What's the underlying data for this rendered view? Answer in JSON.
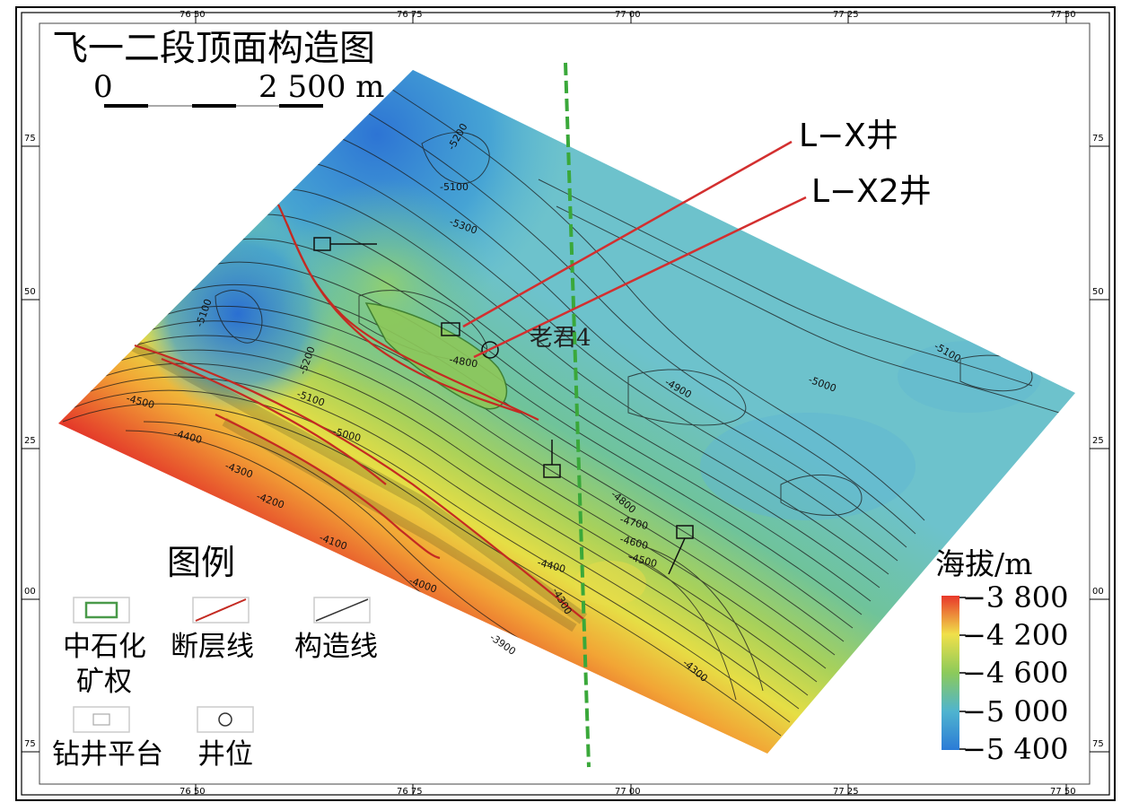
{
  "map": {
    "title": "飞一二段顶面构造图",
    "scale_start": "0",
    "scale_end": "2 500 m",
    "wells": [
      "L−X井",
      "L−X2井"
    ],
    "platform_label": "老君4"
  },
  "contour_labels": [
    "-5200",
    "-5100",
    "-5300",
    "-5200",
    "-5100",
    "-5000",
    "-5100",
    "-4500",
    "-4400",
    "-4300",
    "-4200",
    "-4100",
    "-4000",
    "-3900",
    "-4800",
    "-4900",
    "-5000",
    "-4800",
    "-4700",
    "-4600",
    "-4500",
    "-4400",
    "-4300",
    "-5100",
    "-4300"
  ],
  "frame_ticks": {
    "top": [
      "76 50",
      "76 75",
      "77 00",
      "77 25",
      "77 50"
    ],
    "bottom": [
      "76 50",
      "76 75",
      "77 00",
      "77 25",
      "77 50"
    ],
    "left": [
      "75",
      "50",
      "25",
      "00",
      "75"
    ],
    "right": [
      "75",
      "50",
      "25",
      "00",
      "75"
    ]
  },
  "legend": {
    "title": "图例",
    "items": [
      {
        "label": "中石化",
        "label2": "矿权",
        "symbol": "green-rectangle"
      },
      {
        "label": "断层线",
        "symbol": "red-fault-line"
      },
      {
        "label": "构造线",
        "symbol": "black-contour-line"
      },
      {
        "label": "钻井平台",
        "symbol": "grey-rectangle"
      },
      {
        "label": "井位",
        "symbol": "circle"
      }
    ]
  },
  "colorbar": {
    "title": "海拔/m",
    "ticks": [
      "−3 800",
      "−4 200",
      "−4 600",
      "−5 000",
      "−5 400"
    ],
    "colors": [
      "#e8372a",
      "#f0e04a",
      "#8cca5a",
      "#4fb4cf",
      "#2b7bd6"
    ]
  }
}
